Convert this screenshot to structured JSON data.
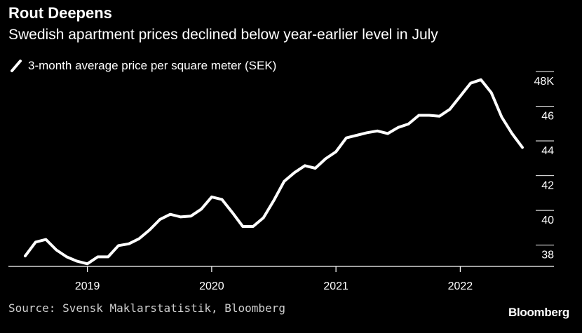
{
  "header": {
    "title": "Rout Deepens",
    "subtitle": "Swedish apartment prices declined below year-earlier level in July"
  },
  "legend": {
    "label": "3-month average price per square meter (SEK)",
    "icon": "line-swatch-icon"
  },
  "footer": {
    "source": "Source: Svensk Maklarstatistik, Bloomberg",
    "brand": "Bloomberg"
  },
  "colors": {
    "background": "#000000",
    "line": "#ffffff",
    "axis": "#ffffff",
    "text": "#ffffff"
  },
  "chart_data": {
    "type": "line",
    "title": "Rout Deepens",
    "subtitle": "Swedish apartment prices declined below year-earlier level in July",
    "xlabel": "",
    "ylabel": "",
    "grid": false,
    "legend_position": "top-left",
    "x_range": [
      "2018-07",
      "2022-07"
    ],
    "ylim": [
      37.3,
      48.2
    ],
    "y_ticks": [
      {
        "value": 38,
        "label": "38"
      },
      {
        "value": 40,
        "label": "40"
      },
      {
        "value": 42,
        "label": "42"
      },
      {
        "value": 44,
        "label": "44"
      },
      {
        "value": 46,
        "label": "46"
      },
      {
        "value": 48,
        "label": "48K"
      }
    ],
    "x_ticks": [
      {
        "value": "2019-01",
        "label": "2019"
      },
      {
        "value": "2020-01",
        "label": "2020"
      },
      {
        "value": "2021-01",
        "label": "2021"
      },
      {
        "value": "2022-01",
        "label": "2022"
      }
    ],
    "series": [
      {
        "name": "3-month average price per square meter (SEK)",
        "x": [
          "2018-07",
          "2018-08",
          "2018-09",
          "2018-10",
          "2018-11",
          "2018-12",
          "2019-01",
          "2019-02",
          "2019-03",
          "2019-04",
          "2019-05",
          "2019-06",
          "2019-07",
          "2019-08",
          "2019-09",
          "2019-10",
          "2019-11",
          "2019-12",
          "2020-01",
          "2020-02",
          "2020-03",
          "2020-04",
          "2020-05",
          "2020-06",
          "2020-07",
          "2020-08",
          "2020-09",
          "2020-10",
          "2020-11",
          "2020-12",
          "2021-01",
          "2021-02",
          "2021-03",
          "2021-04",
          "2021-05",
          "2021-06",
          "2021-07",
          "2021-08",
          "2021-09",
          "2021-10",
          "2021-11",
          "2021-12",
          "2022-01",
          "2022-02",
          "2022-03",
          "2022-04",
          "2022-05",
          "2022-06",
          "2022-07"
        ],
        "values": [
          37.9,
          38.7,
          38.85,
          38.25,
          37.85,
          37.6,
          37.45,
          37.85,
          37.85,
          38.5,
          38.6,
          38.9,
          39.4,
          40.0,
          40.3,
          40.15,
          40.2,
          40.6,
          41.3,
          41.15,
          40.4,
          39.6,
          39.6,
          40.1,
          41.1,
          42.2,
          42.7,
          43.1,
          42.95,
          43.5,
          43.9,
          44.7,
          44.85,
          45.0,
          45.1,
          44.95,
          45.3,
          45.5,
          46.0,
          46.0,
          45.95,
          46.35,
          47.1,
          47.85,
          48.05,
          47.3,
          45.9,
          44.95,
          44.15
        ]
      }
    ]
  }
}
